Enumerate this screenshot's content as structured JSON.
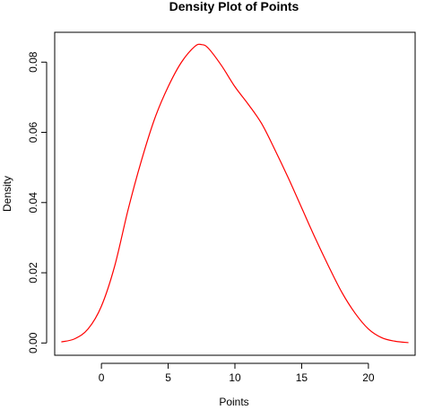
{
  "chart_data": {
    "type": "line",
    "title": "Density Plot of Points",
    "xlabel": "Points",
    "ylabel": "Density",
    "xlim": [
      -3.5,
      23.5
    ],
    "ylim": [
      -0.0035,
      0.0885
    ],
    "x_ticks": [
      0,
      5,
      10,
      15,
      20
    ],
    "y_ticks": [
      0.0,
      0.02,
      0.04,
      0.06,
      0.08
    ],
    "y_tick_labels": [
      "0.00",
      "0.02",
      "0.04",
      "0.06",
      "0.08"
    ],
    "grid": false,
    "legend": "none",
    "series": [
      {
        "color": "#ff0000",
        "x": [
          -3,
          -2,
          -1,
          0,
          1,
          2,
          3,
          4,
          5,
          6,
          7,
          7.5,
          8,
          9,
          10,
          11,
          12,
          13,
          14,
          15,
          16,
          17,
          18,
          19,
          20,
          21,
          22,
          23
        ],
        "y": [
          0.0003,
          0.0012,
          0.004,
          0.0105,
          0.022,
          0.038,
          0.052,
          0.064,
          0.073,
          0.08,
          0.0845,
          0.085,
          0.084,
          0.079,
          0.073,
          0.068,
          0.0625,
          0.055,
          0.047,
          0.0385,
          0.03,
          0.022,
          0.0145,
          0.0085,
          0.004,
          0.0015,
          0.0005,
          0.0001
        ]
      }
    ]
  }
}
